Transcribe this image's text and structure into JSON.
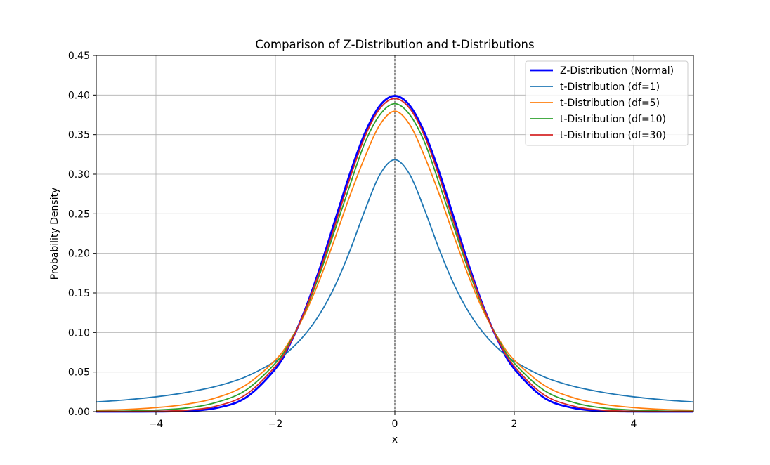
{
  "chart_data": {
    "type": "line",
    "title": "Comparison of Z-Distribution and t-Distributions",
    "xlabel": "x",
    "ylabel": "Probability Density",
    "xlim": [
      -5,
      5
    ],
    "ylim": [
      0,
      0.45
    ],
    "x_ticks": [
      -4,
      -2,
      0,
      2,
      4
    ],
    "x_tick_labels": [
      "−4",
      "−2",
      "0",
      "2",
      "4"
    ],
    "y_ticks": [
      0.0,
      0.05,
      0.1,
      0.15,
      0.2,
      0.25,
      0.3,
      0.35,
      0.4,
      0.45
    ],
    "y_tick_labels": [
      "0.00",
      "0.05",
      "0.10",
      "0.15",
      "0.20",
      "0.25",
      "0.30",
      "0.35",
      "0.40",
      "0.45"
    ],
    "grid": true,
    "vertical_reference_line_x": 0,
    "legend_position": "top-right",
    "x": [
      -5.0,
      -4.5,
      -4.0,
      -3.5,
      -3.0,
      -2.5,
      -2.0,
      -1.75,
      -1.5,
      -1.25,
      -1.0,
      -0.75,
      -0.5,
      -0.25,
      0.0,
      0.25,
      0.5,
      0.75,
      1.0,
      1.25,
      1.5,
      1.75,
      2.0,
      2.5,
      3.0,
      3.5,
      4.0,
      4.5,
      5.0
    ],
    "series": [
      {
        "name": "Z-Distribution (Normal)",
        "color": "#0000ff",
        "values": [
          0.0,
          0.0,
          0.0001,
          0.0009,
          0.0044,
          0.0175,
          0.054,
          0.0863,
          0.1295,
          0.1826,
          0.242,
          0.3011,
          0.3521,
          0.3867,
          0.3989,
          0.3867,
          0.3521,
          0.3011,
          0.242,
          0.1826,
          0.1295,
          0.0863,
          0.054,
          0.0175,
          0.0044,
          0.0009,
          0.0001,
          0.0,
          0.0
        ]
      },
      {
        "name": "t-Distribution (df=1)",
        "color": "#1f77b4",
        "values": [
          0.0122,
          0.0149,
          0.0187,
          0.0241,
          0.0318,
          0.0439,
          0.0637,
          0.0783,
          0.0979,
          0.1242,
          0.1592,
          0.2037,
          0.2546,
          0.2996,
          0.3183,
          0.2996,
          0.2546,
          0.2037,
          0.1592,
          0.1242,
          0.0979,
          0.0783,
          0.0637,
          0.0439,
          0.0318,
          0.0241,
          0.0187,
          0.0149,
          0.0122
        ]
      },
      {
        "name": "t-Distribution (df=5)",
        "color": "#ff7f0e",
        "values": [
          0.0018,
          0.0027,
          0.0051,
          0.0092,
          0.0173,
          0.0333,
          0.0651,
          0.0906,
          0.1245,
          0.1683,
          0.2197,
          0.2733,
          0.322,
          0.3626,
          0.3796,
          0.3626,
          0.322,
          0.2733,
          0.2197,
          0.1683,
          0.1245,
          0.0906,
          0.0651,
          0.0333,
          0.0173,
          0.0092,
          0.0051,
          0.0027,
          0.0018
        ]
      },
      {
        "name": "t-Distribution (df=10)",
        "color": "#2ca02c",
        "values": [
          0.0004,
          0.0008,
          0.002,
          0.0045,
          0.0114,
          0.0269,
          0.0611,
          0.0888,
          0.1274,
          0.1754,
          0.2304,
          0.2866,
          0.34,
          0.3752,
          0.3891,
          0.3752,
          0.34,
          0.2866,
          0.2304,
          0.1754,
          0.1274,
          0.0888,
          0.0611,
          0.0269,
          0.0114,
          0.0045,
          0.002,
          0.0008,
          0.0004
        ]
      },
      {
        "name": "t-Distribution (df=30)",
        "color": "#d62728",
        "values": [
          0.0001,
          0.0002,
          0.0004,
          0.0017,
          0.0068,
          0.0212,
          0.0573,
          0.087,
          0.1286,
          0.1792,
          0.236,
          0.2953,
          0.3476,
          0.383,
          0.3956,
          0.383,
          0.3476,
          0.2953,
          0.236,
          0.1792,
          0.1286,
          0.087,
          0.0573,
          0.0212,
          0.0068,
          0.0017,
          0.0004,
          0.0002,
          0.0001
        ]
      }
    ]
  }
}
